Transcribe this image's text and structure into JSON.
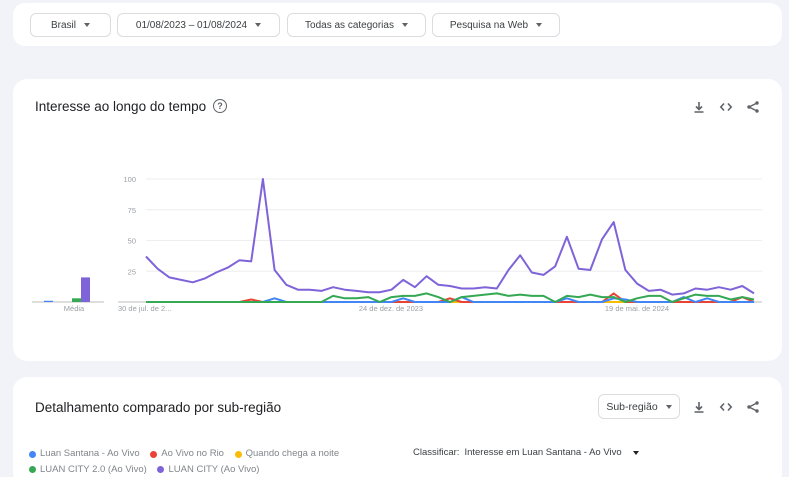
{
  "filters": {
    "region": "Brasil",
    "date_range": "01/08/2023 – 01/08/2024",
    "category": "Todas as categorias",
    "search_type": "Pesquisa na Web"
  },
  "interest_over_time": {
    "title": "Interesse ao longo do tempo",
    "help_label": "?",
    "actions": [
      "download-icon",
      "embed-icon",
      "share-icon"
    ]
  },
  "subregion": {
    "title": "Detalhamento comparado por sub-região",
    "resolution_select": "Sub-região",
    "sort_label": "Classificar:",
    "sort_value": "Interesse em Luan Santana - Ao Vivo",
    "actions": [
      "download-icon",
      "embed-icon",
      "share-icon"
    ]
  },
  "legend": [
    {
      "label": "Luan Santana - Ao Vivo",
      "color": "#4285f4"
    },
    {
      "label": "Ao Vivo no Rio",
      "color": "#ea4335"
    },
    {
      "label": "Quando chega a noite",
      "color": "#fbbc04"
    },
    {
      "label": "LUAN CITY 2.0 (Ao Vivo)",
      "color": "#34a853"
    },
    {
      "label": "LUAN CITY (Ao Vivo)",
      "color": "#7f63d8"
    }
  ],
  "chart_data": {
    "type": "line",
    "title": "Interesse ao longo do tempo",
    "xlabel": "",
    "ylabel": "",
    "ylim": [
      0,
      100
    ],
    "y_ticks": [
      25,
      50,
      75,
      100
    ],
    "x_tick_labels": [
      "30 de jul. de 2...",
      "24 de dez. de 2023",
      "19 de mai. de 2024"
    ],
    "grid": true,
    "average_label": "Média",
    "averages": [
      {
        "name": "Luan Santana - Ao Vivo",
        "value": 1
      },
      {
        "name": "Ao Vivo no Rio",
        "value": 0
      },
      {
        "name": "Quando chega a noite",
        "value": 0
      },
      {
        "name": "LUAN CITY 2.0 (Ao Vivo)",
        "value": 3
      },
      {
        "name": "LUAN CITY (Ao Vivo)",
        "value": 20
      }
    ],
    "series": [
      {
        "name": "LUAN CITY (Ao Vivo)",
        "color": "#7f63d8",
        "values": [
          37,
          27,
          20,
          18,
          16,
          19,
          24,
          28,
          34,
          33,
          100,
          26,
          14,
          10,
          10,
          9,
          12,
          10,
          9,
          8,
          8,
          10,
          18,
          12,
          21,
          14,
          13,
          11,
          11,
          12,
          11,
          26,
          38,
          24,
          22,
          29,
          53,
          27,
          26,
          51,
          65,
          26,
          15,
          9,
          10,
          6,
          7,
          11,
          10,
          12,
          10,
          13,
          7
        ]
      },
      {
        "name": "LUAN CITY 2.0 (Ao Vivo)",
        "color": "#34a853",
        "values": [
          0,
          0,
          0,
          0,
          0,
          0,
          0,
          0,
          0,
          0,
          0,
          0,
          0,
          0,
          0,
          0,
          5,
          3,
          3,
          4,
          0,
          4,
          5,
          5,
          7,
          4,
          0,
          4,
          5,
          6,
          7,
          5,
          6,
          5,
          5,
          0,
          5,
          4,
          6,
          4,
          4,
          0,
          3,
          5,
          5,
          0,
          3,
          6,
          5,
          5,
          2,
          4,
          2
        ]
      },
      {
        "name": "Luan Santana - Ao Vivo",
        "color": "#4285f4",
        "values": [
          0,
          0,
          0,
          0,
          0,
          0,
          0,
          0,
          0,
          0,
          0,
          3,
          0,
          0,
          0,
          0,
          0,
          0,
          0,
          0,
          0,
          0,
          3,
          0,
          0,
          0,
          0,
          4,
          0,
          0,
          0,
          0,
          0,
          0,
          0,
          0,
          3,
          0,
          0,
          0,
          3,
          2,
          0,
          0,
          0,
          0,
          4,
          0,
          3,
          0,
          0,
          0,
          0
        ]
      },
      {
        "name": "Ao Vivo no Rio",
        "color": "#ea4335",
        "values": [
          0,
          0,
          0,
          0,
          0,
          0,
          0,
          0,
          0,
          2,
          0,
          0,
          0,
          0,
          0,
          0,
          0,
          0,
          0,
          0,
          0,
          0,
          0,
          0,
          0,
          0,
          3,
          0,
          0,
          0,
          0,
          0,
          0,
          0,
          0,
          0,
          0,
          0,
          0,
          0,
          7,
          0,
          0,
          0,
          0,
          0,
          0,
          0,
          0,
          0,
          0,
          4,
          0
        ]
      },
      {
        "name": "Quando chega a noite",
        "color": "#fbbc04",
        "values": [
          0,
          0,
          0,
          0,
          0,
          0,
          0,
          0,
          0,
          0,
          0,
          0,
          0,
          0,
          0,
          0,
          0,
          0,
          0,
          0,
          0,
          0,
          0,
          0,
          0,
          0,
          0,
          0,
          0,
          0,
          0,
          0,
          0,
          0,
          0,
          0,
          0,
          0,
          0,
          0,
          0,
          0,
          0,
          0,
          0,
          0,
          0,
          0,
          0,
          0,
          0,
          0,
          0
        ]
      }
    ]
  }
}
